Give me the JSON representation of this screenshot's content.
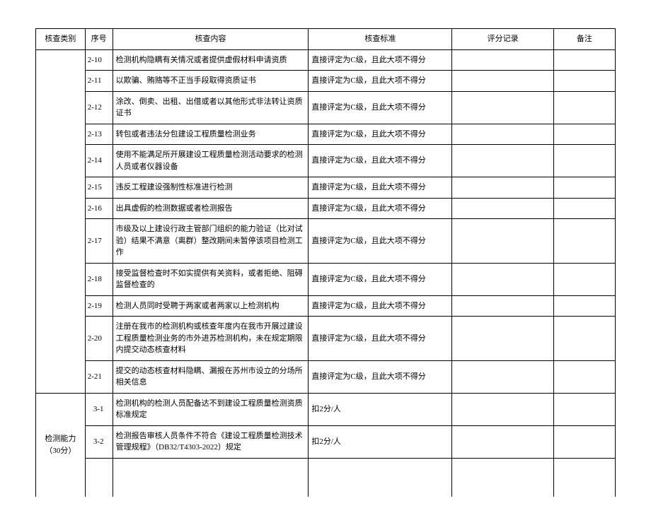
{
  "headers": {
    "category": "核查类别",
    "seq": "序号",
    "content": "核查内容",
    "standard": "核查标准",
    "score": "评分记录",
    "note": "备注"
  },
  "category_label": "检测能力（30分）",
  "rows": [
    {
      "seq": "2-10",
      "content": "检测机构隐瞒有关情况或者提供虚假材料申请资质",
      "standard": "直接评定为C级，且此大项不得分"
    },
    {
      "seq": "2-11",
      "content": "以欺骗、贿赂等不正当手段取得资质证书",
      "standard": "直接评定为C级，且此大项不得分"
    },
    {
      "seq": "2-12",
      "content": "涂改、倒卖、出租、出借或者以其他形式非法转让资质证书",
      "standard": "直接评定为C级，且此大项不得分"
    },
    {
      "seq": "2-13",
      "content": "转包或者违法分包建设工程质量检测业务",
      "standard": "直接评定为C级，且此大项不得分"
    },
    {
      "seq": "2-14",
      "content": "使用不能满足所开展建设工程质量检测活动要求的检测人员或者仪器设备",
      "standard": "直接评定为C级，且此大项不得分"
    },
    {
      "seq": "2-15",
      "content": "违反工程建设强制性标准进行检测",
      "standard": "直接评定为C级，且此大项不得分"
    },
    {
      "seq": "2-16",
      "content": "出具虚假的检测数据或者检测报告",
      "standard": "直接评定为C级，且此大项不得分"
    },
    {
      "seq": "2-17",
      "content": "市级及以上建设行政主管部门组织的能力验证（比对试验）结果不满意（离群）整改期间未暂停该项目检测工作",
      "standard": "直接评定为C级，且此大项不得分"
    },
    {
      "seq": "2-18",
      "content": "接受监督检查时不如实提供有关资料，或者拒绝、阻碍监督检查的",
      "standard": "直接评定为C级，且此大项不得分"
    },
    {
      "seq": "2-19",
      "content": "检测人员同时受聘于两家或者两家以上检测机构",
      "standard": "直接评定为C级，且此大项不得分"
    },
    {
      "seq": "2-20",
      "content": "注册在我市的检测机构或核查年度内在我市开展过建设工程质量检测业务的市外进苏检测机构，未在规定期限内提交动态核查材料",
      "standard": "直接评定为C级，且此大项不得分"
    },
    {
      "seq": "2-21",
      "content": "提交的动态核查材料隐瞒、漏报在苏州市设立的分场所相关信息",
      "standard": "直接评定为C级，且此大项不得分"
    }
  ],
  "rows_group2": [
    {
      "seq": "3-1",
      "content": "检测机构的检测人员配备达不到建设工程质量检测资质标准规定",
      "standard": "扣2分/人"
    },
    {
      "seq": "3-2",
      "content": "检测报告审核人员条件不符合《建设工程质量检测技术管理规程》（DB32/T4303-2022）规定",
      "standard": "扣2分/人"
    }
  ]
}
